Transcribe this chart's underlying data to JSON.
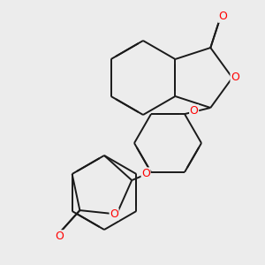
{
  "background_color": "#ececec",
  "bond_color": "#1a1a1a",
  "oxygen_color": "#ff0000",
  "bond_width": 1.4,
  "dbo": 0.018,
  "figsize": [
    3.0,
    3.0
  ],
  "dpi": 100,
  "xlim": [
    0,
    300
  ],
  "ylim": [
    0,
    300
  ]
}
